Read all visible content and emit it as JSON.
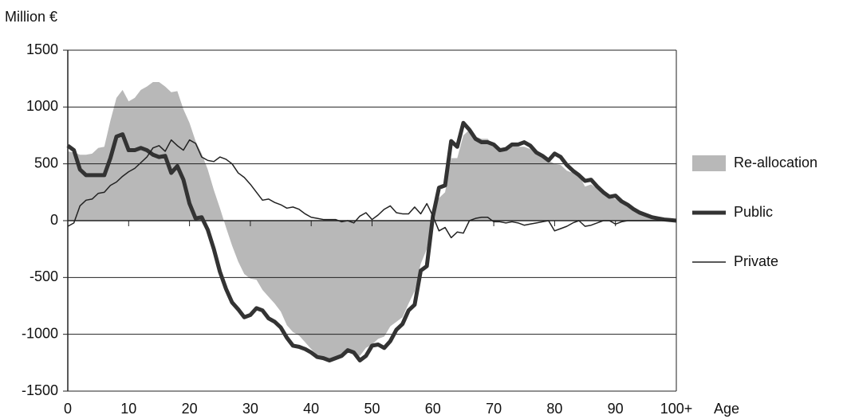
{
  "chart_data": {
    "type": "line",
    "y_label": "Million €",
    "x_label": "Age",
    "x": [
      0,
      1,
      2,
      3,
      4,
      5,
      6,
      7,
      8,
      9,
      10,
      11,
      12,
      13,
      14,
      15,
      16,
      17,
      18,
      19,
      20,
      21,
      22,
      23,
      24,
      25,
      26,
      27,
      28,
      29,
      30,
      31,
      32,
      33,
      34,
      35,
      36,
      37,
      38,
      39,
      40,
      41,
      42,
      43,
      44,
      45,
      46,
      47,
      48,
      49,
      50,
      51,
      52,
      53,
      54,
      55,
      56,
      57,
      58,
      59,
      60,
      61,
      62,
      63,
      64,
      65,
      66,
      67,
      68,
      69,
      70,
      71,
      72,
      73,
      74,
      75,
      76,
      77,
      78,
      79,
      80,
      81,
      82,
      83,
      84,
      85,
      86,
      87,
      88,
      89,
      90,
      91,
      92,
      93,
      94,
      95,
      96,
      97,
      98,
      99,
      100
    ],
    "series": [
      {
        "name": "Re-allocation",
        "kind": "area",
        "color": "#b8b8b8",
        "values": [
          610,
          600,
          580,
          580,
          590,
          640,
          650,
          880,
          1080,
          1150,
          1050,
          1080,
          1150,
          1180,
          1220,
          1220,
          1180,
          1130,
          1140,
          980,
          860,
          700,
          590,
          450,
          270,
          110,
          -60,
          -220,
          -360,
          -470,
          -510,
          -520,
          -610,
          -670,
          -730,
          -800,
          -920,
          -980,
          -1010,
          -1070,
          -1130,
          -1180,
          -1200,
          -1220,
          -1200,
          -1200,
          -1140,
          -1180,
          -1190,
          -1120,
          -1090,
          -1040,
          -1020,
          -930,
          -890,
          -850,
          -730,
          -620,
          -380,
          -250,
          80,
          200,
          250,
          550,
          550,
          750,
          800,
          740,
          720,
          720,
          660,
          610,
          610,
          660,
          650,
          650,
          630,
          580,
          560,
          530,
          500,
          490,
          440,
          420,
          400,
          300,
          320,
          280,
          250,
          210,
          190,
          160,
          140,
          100,
          70,
          50,
          30,
          20,
          10,
          5,
          0
        ]
      },
      {
        "name": "Public",
        "kind": "line",
        "width": 5,
        "color": "#333333",
        "values": [
          660,
          620,
          450,
          400,
          400,
          400,
          400,
          550,
          740,
          760,
          620,
          620,
          640,
          620,
          580,
          560,
          570,
          420,
          480,
          360,
          150,
          20,
          30,
          -80,
          -250,
          -450,
          -600,
          -720,
          -780,
          -850,
          -830,
          -770,
          -790,
          -860,
          -890,
          -940,
          -1030,
          -1100,
          -1110,
          -1130,
          -1160,
          -1200,
          -1210,
          -1230,
          -1210,
          -1190,
          -1140,
          -1160,
          -1230,
          -1190,
          -1100,
          -1090,
          -1120,
          -1060,
          -960,
          -910,
          -790,
          -740,
          -440,
          -400,
          40,
          290,
          310,
          700,
          650,
          860,
          800,
          720,
          690,
          690,
          670,
          620,
          630,
          670,
          670,
          690,
          660,
          600,
          570,
          530,
          590,
          560,
          490,
          440,
          400,
          350,
          360,
          300,
          250,
          210,
          220,
          170,
          140,
          100,
          70,
          50,
          30,
          20,
          10,
          5,
          0
        ]
      },
      {
        "name": "Private",
        "kind": "line",
        "width": 1.5,
        "color": "#222222",
        "values": [
          -50,
          -20,
          130,
          180,
          190,
          240,
          250,
          310,
          340,
          390,
          430,
          460,
          510,
          560,
          640,
          660,
          610,
          710,
          660,
          620,
          710,
          680,
          560,
          530,
          520,
          560,
          540,
          500,
          420,
          380,
          320,
          250,
          180,
          190,
          160,
          140,
          110,
          120,
          100,
          60,
          30,
          20,
          10,
          10,
          10,
          -10,
          0,
          -20,
          40,
          70,
          10,
          50,
          100,
          130,
          70,
          60,
          60,
          120,
          60,
          150,
          40,
          -90,
          -60,
          -150,
          -100,
          -110,
          0,
          20,
          30,
          30,
          -10,
          -10,
          -20,
          -10,
          -20,
          -40,
          -30,
          -20,
          -10,
          0,
          -90,
          -70,
          -50,
          -20,
          0,
          -50,
          -40,
          -20,
          0,
          0,
          -30,
          -10,
          0,
          0,
          0,
          0,
          0,
          0,
          0,
          0,
          0
        ]
      }
    ],
    "xlim": [
      0,
      100
    ],
    "xticks": [
      0,
      10,
      20,
      30,
      40,
      50,
      60,
      70,
      80,
      90,
      {
        "value": 100,
        "label": "100+"
      }
    ],
    "ylim": [
      -1500,
      1500
    ],
    "yticks": [
      -1500,
      -1000,
      -500,
      0,
      500,
      1000,
      1500
    ],
    "grid": true,
    "legend": "right"
  }
}
